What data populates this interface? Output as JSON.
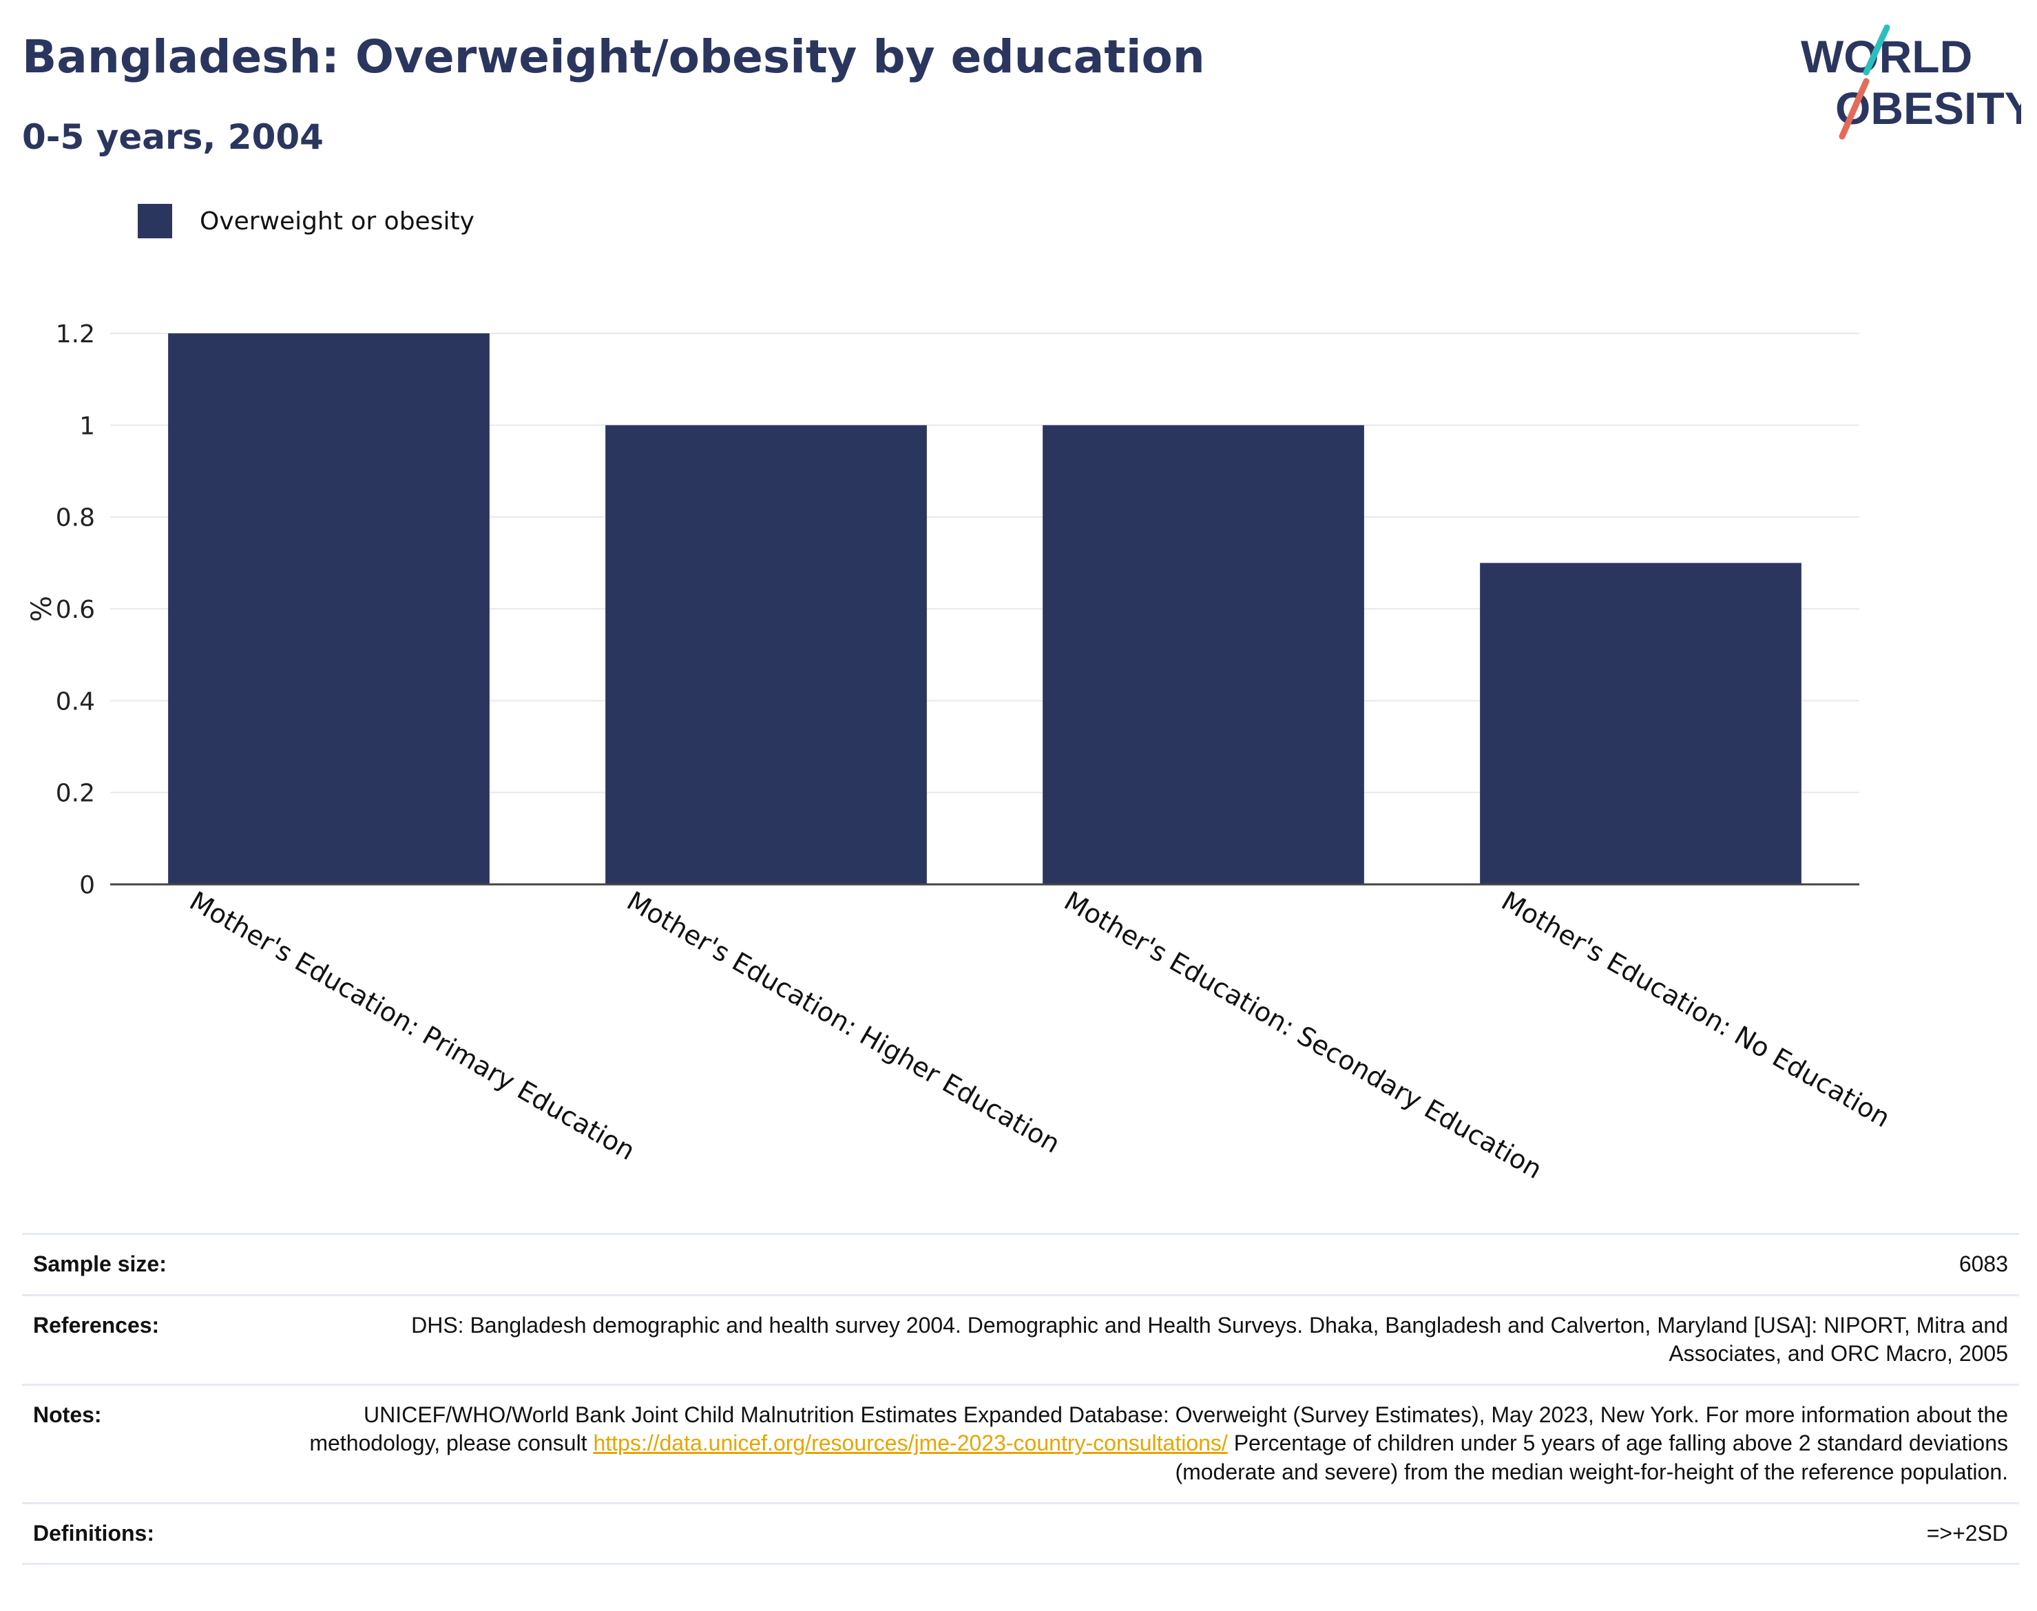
{
  "header": {
    "title": "Bangladesh: Overweight/obesity by education",
    "subtitle": "0-5 years, 2004"
  },
  "logo": {
    "text_line1": "WORLD",
    "text_line2": "OBESITY",
    "colors": {
      "text": "#2b365f",
      "slash_top": "#2bbfbf",
      "slash_bottom": "#e56a5a"
    }
  },
  "chart_data": {
    "type": "bar",
    "categories": [
      "Mother's Education: Primary Education",
      "Mother's Education: Higher Education",
      "Mother's Education: Secondary Education",
      "Mother's Education: No Education"
    ],
    "series": [
      {
        "name": "Overweight or obesity",
        "values": [
          1.2,
          1.0,
          1.0,
          0.7
        ],
        "color": "#2b365f"
      }
    ],
    "ylabel": "%",
    "ylim": [
      0,
      1.2
    ],
    "yticks": [
      "0",
      "0.2",
      "0.4",
      "0.6",
      "0.8",
      "1",
      "1.2"
    ],
    "grid": true,
    "legend_position": "top-left"
  },
  "footer": {
    "sample_size_label": "Sample size:",
    "sample_size_value": "6083",
    "references_label": "References:",
    "references_value": "DHS: Bangladesh demographic and health survey 2004. Demographic and Health Surveys. Dhaka, Bangladesh and Calverton, Maryland [USA]: NIPORT, Mitra and Associates, and ORC Macro, 2005",
    "notes_label": "Notes:",
    "notes_text_before": "UNICEF/WHO/World Bank Joint Child Malnutrition Estimates Expanded Database: Overweight (Survey Estimates), May 2023, New York. For more information about the methodology, please consult ",
    "notes_link": "https://data.unicef.org/resources/jme-2023-country-consultations/",
    "notes_text_after": " Percentage of children under 5 years of age falling above 2 standard deviations (moderate and severe) from the median weight-for-height of the reference population.",
    "definitions_label": "Definitions:",
    "definitions_value": "=>+2SD"
  }
}
